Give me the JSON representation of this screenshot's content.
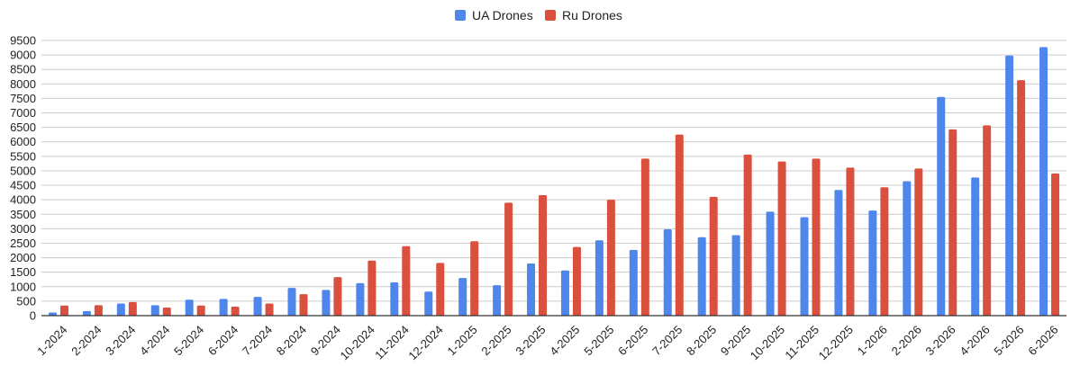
{
  "chart_data": {
    "type": "bar",
    "categories": [
      "1-2024",
      "2-2024",
      "3-2024",
      "4-2024",
      "5-2024",
      "6-2024",
      "7-2024",
      "8-2024",
      "9-2024",
      "10-2024",
      "11-2024",
      "12-2024",
      "1-2025",
      "2-2025",
      "3-2025",
      "4-2025",
      "5-2025",
      "6-2025",
      "7-2025",
      "8-2025",
      "9-2025",
      "10-2025",
      "11-2025",
      "12-2025",
      "1-2026",
      "2-2026",
      "3-2026",
      "4-2026",
      "5-2026",
      "6-2026"
    ],
    "series": [
      {
        "name": "UA Drones",
        "color": "#4f86ec",
        "values": [
          110,
          160,
          420,
          360,
          550,
          580,
          650,
          960,
          890,
          1120,
          1150,
          830,
          1300,
          1050,
          1800,
          1560,
          2600,
          2270,
          2980,
          2710,
          2780,
          3590,
          3400,
          4340,
          3630,
          4640,
          7550,
          4770,
          8980,
          9270
        ]
      },
      {
        "name": "Ru Drones",
        "color": "#d9503f",
        "values": [
          350,
          360,
          470,
          280,
          350,
          310,
          420,
          740,
          1330,
          1900,
          2400,
          1820,
          2570,
          3900,
          4160,
          2370,
          4000,
          5420,
          6250,
          4100,
          5560,
          5320,
          5420,
          5110,
          4430,
          5080,
          6430,
          6570,
          8130,
          4910
        ]
      }
    ],
    "title": "",
    "xlabel": "",
    "ylabel": "",
    "ylim": [
      0,
      9500
    ],
    "yticks": [
      0,
      500,
      1000,
      1500,
      2000,
      2500,
      3000,
      3500,
      4000,
      4500,
      5000,
      5500,
      6000,
      6500,
      7000,
      7500,
      8000,
      8500,
      9000,
      9500
    ],
    "grid": true,
    "legend_position": "top-center",
    "gridline_color": "#cccccc",
    "axis_color": "#333333"
  }
}
